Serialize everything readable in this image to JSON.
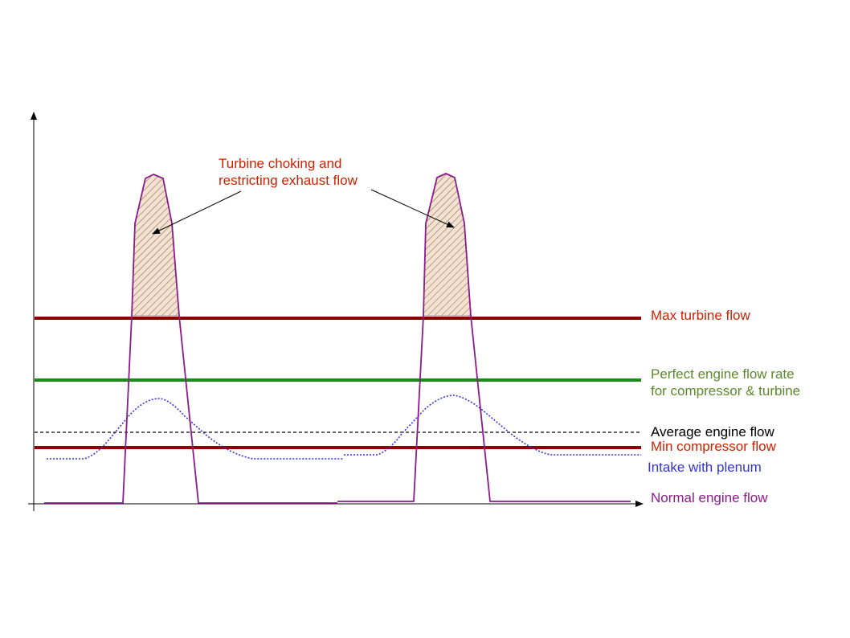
{
  "annotation": {
    "line1": "Turbine choking and",
    "line2": "restricting exhaust flow"
  },
  "legend": {
    "max_turbine": "Max turbine flow",
    "perfect_line1": "Perfect engine flow rate",
    "perfect_line2": "for compressor & turbine",
    "average": "Average engine flow",
    "min_compressor": "Min compressor flow",
    "intake": "Intake with plenum",
    "normal": "Normal engine flow"
  },
  "colors": {
    "max_turbine": "#8b0000",
    "perfect": "#1a8a1a",
    "perfect_text": "#5a8a2a",
    "average": "#000000",
    "min_compressor": "#8b0000",
    "min_compressor_text": "#cc2200",
    "intake": "#3333dd",
    "normal": "#8b1a8b",
    "annotation": "#cc2200",
    "choke_fill": "#f3e2d2",
    "hatch": "#7a4a2a"
  }
}
